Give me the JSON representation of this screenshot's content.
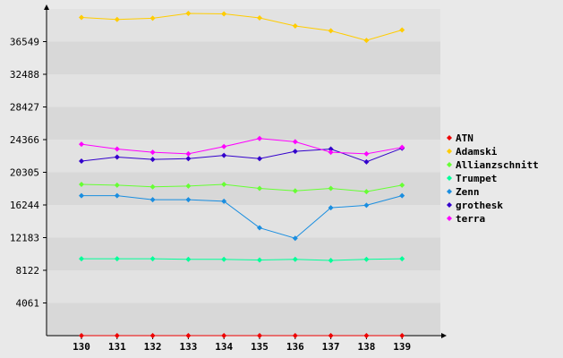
{
  "chart_data": {
    "type": "line",
    "categories": [
      "130",
      "131",
      "132",
      "133",
      "134",
      "135",
      "136",
      "137",
      "138",
      "139"
    ],
    "yticks": [
      "4061",
      "8122",
      "12183",
      "16244",
      "20305",
      "24366",
      "28427",
      "32488",
      "36549"
    ],
    "ylim": [
      0,
      40610
    ],
    "grid": "horizontal bands",
    "legend_position": "right",
    "series": [
      {
        "name": "ATN",
        "color": "#ee0000",
        "values": [
          0,
          0,
          0,
          0,
          0,
          0,
          0,
          0,
          0,
          0
        ]
      },
      {
        "name": "Adamski",
        "color": "#ffcc00",
        "values": [
          39550,
          39300,
          39450,
          40050,
          40000,
          39500,
          38500,
          37900,
          36700,
          38000
        ]
      },
      {
        "name": "Allianzschnitt",
        "color": "#66ff33",
        "values": [
          18800,
          18700,
          18500,
          18600,
          18800,
          18300,
          18000,
          18300,
          17900,
          18700
        ]
      },
      {
        "name": "Trumpet",
        "color": "#00ff99",
        "values": [
          9550,
          9550,
          9550,
          9480,
          9480,
          9400,
          9480,
          9350,
          9480,
          9550
        ]
      },
      {
        "name": "Zenn",
        "color": "#1a8ee0",
        "values": [
          17400,
          17400,
          16900,
          16900,
          16700,
          13400,
          12100,
          15900,
          16200,
          17400
        ]
      },
      {
        "name": "grothesk",
        "color": "#3300cc",
        "values": [
          21700,
          22200,
          21900,
          22000,
          22400,
          22000,
          22900,
          23200,
          21600,
          23300
        ]
      },
      {
        "name": "terra",
        "color": "#ff00ff",
        "values": [
          23800,
          23200,
          22800,
          22600,
          23500,
          24500,
          24100,
          22800,
          22600,
          23400
        ]
      }
    ]
  }
}
